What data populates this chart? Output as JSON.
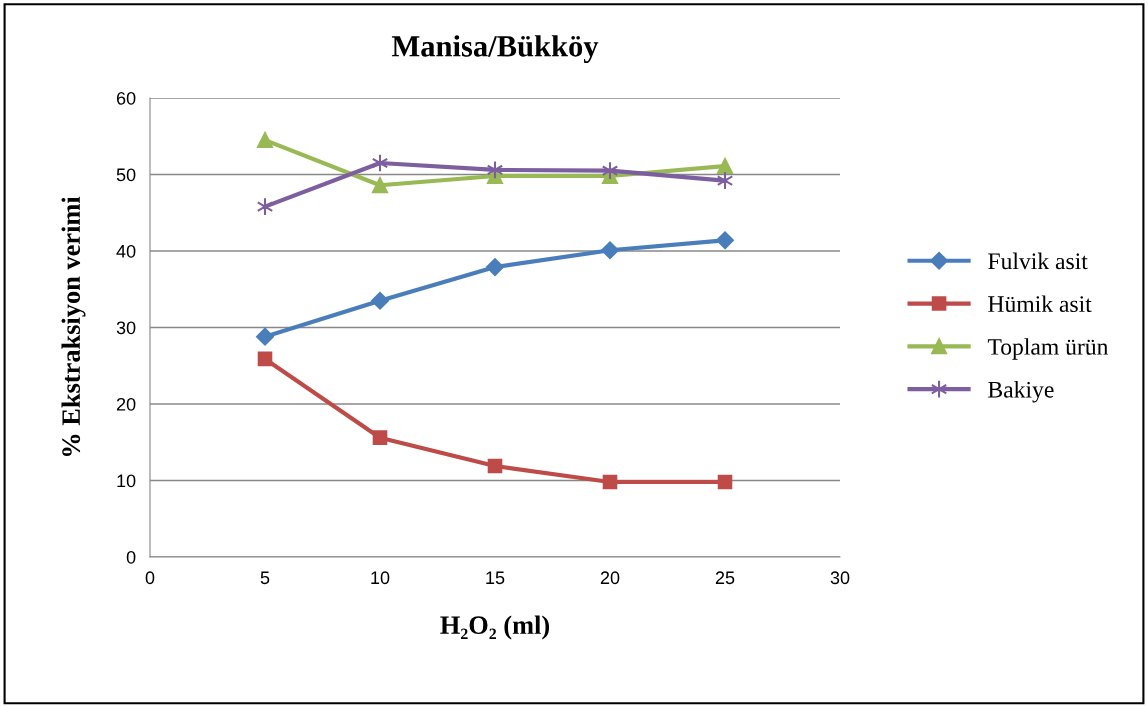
{
  "chart_data": {
    "type": "line",
    "title": "Manisa/Bükköy",
    "xlabel": "H₂O₂ (ml)",
    "ylabel": "% Ekstraksiyon verimi",
    "x": [
      5,
      10,
      15,
      20,
      25
    ],
    "xlim": [
      0,
      30
    ],
    "xticks": [
      0,
      5,
      10,
      15,
      20,
      25,
      30
    ],
    "ylim": [
      0,
      60
    ],
    "yticks": [
      0,
      10,
      20,
      30,
      40,
      50,
      60
    ],
    "grid": "y",
    "legend": "right",
    "series": [
      {
        "name": "Fulvik asit",
        "color": "#4a7ebb",
        "marker": "diamond",
        "values": [
          28.8,
          33.5,
          37.9,
          40.1,
          41.4
        ]
      },
      {
        "name": "Hümik asit",
        "color": "#be4b48",
        "marker": "square",
        "values": [
          25.9,
          15.6,
          11.9,
          9.8,
          9.8
        ]
      },
      {
        "name": "Toplam ürün",
        "color": "#98b954",
        "marker": "triangle",
        "values": [
          54.5,
          48.6,
          49.8,
          49.8,
          51.1
        ]
      },
      {
        "name": "Bakiye",
        "color": "#7d5fa0",
        "marker": "cross",
        "values": [
          45.8,
          51.5,
          50.6,
          50.5,
          49.2
        ]
      }
    ]
  }
}
